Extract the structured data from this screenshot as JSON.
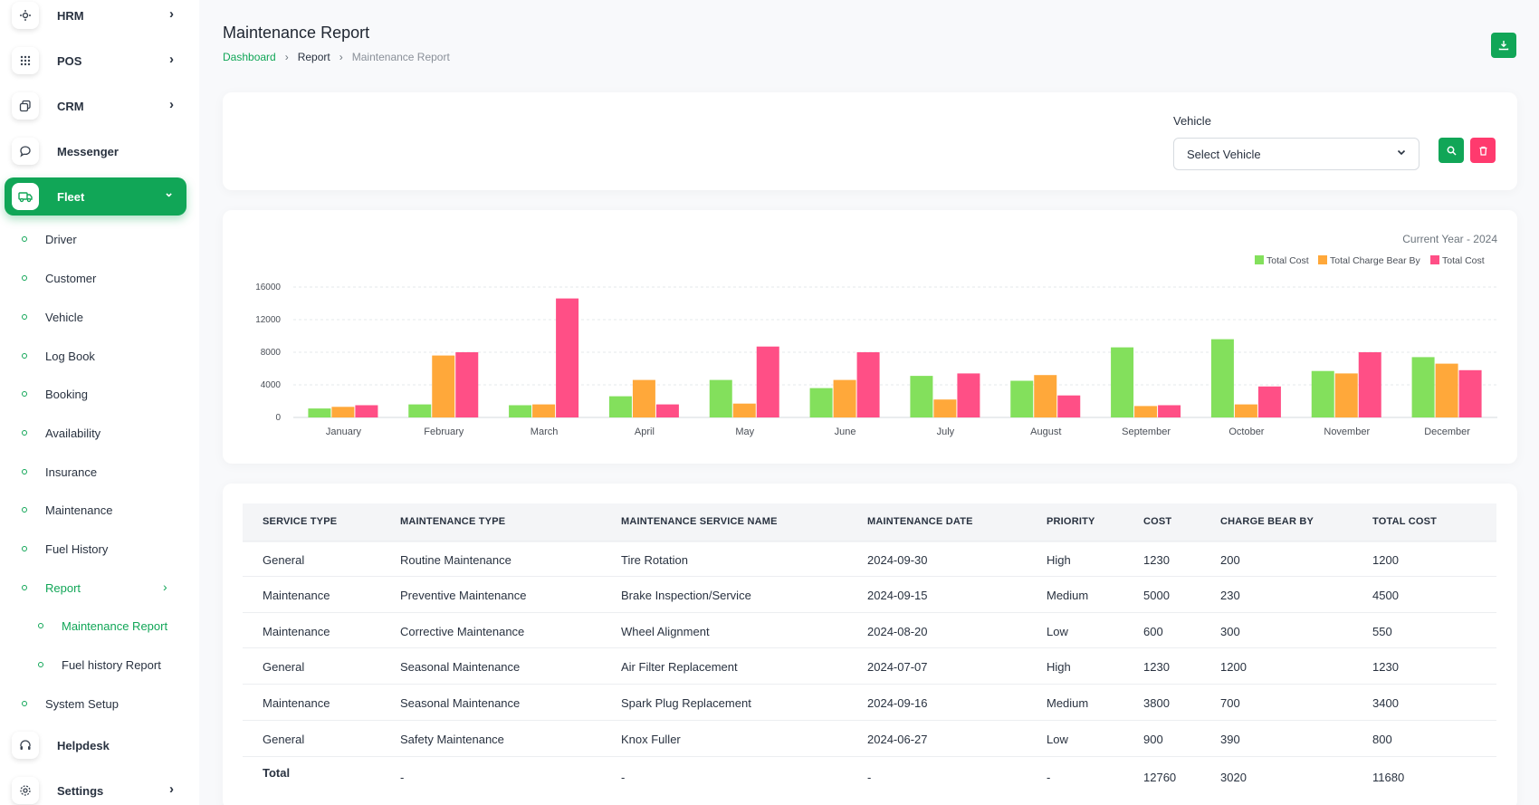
{
  "sidebar": {
    "hrm": "HRM",
    "pos": "POS",
    "crm": "CRM",
    "messenger": "Messenger",
    "fleet": "Fleet",
    "driver": "Driver",
    "customer": "Customer",
    "vehicle": "Vehicle",
    "logbook": "Log Book",
    "booking": "Booking",
    "availability": "Availability",
    "insurance": "Insurance",
    "maintenance": "Maintenance",
    "fuel_history": "Fuel History",
    "report": "Report",
    "maintenance_report": "Maintenance Report",
    "fuel_history_report": "Fuel history Report",
    "system_setup": "System Setup",
    "helpdesk": "Helpdesk",
    "settings": "Settings"
  },
  "header": {
    "title": "Maintenance Report",
    "breadcrumb": [
      "Dashboard",
      "Report",
      "Maintenance Report"
    ]
  },
  "filter": {
    "label": "Vehicle",
    "placeholder": "Select Vehicle"
  },
  "chart_meta": {
    "current_year": "Current Year - 2024"
  },
  "colors": {
    "accent": "#11a657",
    "danger": "#ff3a6e",
    "series_green": "#83e05c",
    "series_orange": "#ffa83a",
    "series_pink": "#ff4f86"
  },
  "chart_data": {
    "type": "bar",
    "categories": [
      "January",
      "February",
      "March",
      "April",
      "May",
      "June",
      "July",
      "August",
      "September",
      "October",
      "November",
      "December"
    ],
    "series": [
      {
        "name": "Total Cost",
        "color": "#83e05c",
        "values": [
          1100,
          1600,
          1500,
          2600,
          4600,
          3600,
          5100,
          4500,
          8600,
          9600,
          5700,
          7400
        ]
      },
      {
        "name": "Total Charge Bear By",
        "color": "#ffa83a",
        "values": [
          1300,
          7600,
          1600,
          4600,
          1700,
          4600,
          2200,
          5200,
          1400,
          1600,
          5400,
          6600
        ]
      },
      {
        "name": "Total Cost",
        "color": "#ff4f86",
        "values": [
          1500,
          8000,
          14600,
          1600,
          8700,
          8000,
          5400,
          2700,
          1500,
          3800,
          8000,
          5800
        ]
      }
    ],
    "yticks": [
      0,
      4000,
      8000,
      12000,
      16000
    ],
    "ylim": [
      0,
      16000
    ],
    "grid": true,
    "legend": "top-right"
  },
  "table": {
    "headers": [
      "SERVICE TYPE",
      "MAINTENANCE TYPE",
      "MAINTENANCE SERVICE NAME",
      "MAINTENANCE DATE",
      "PRIORITY",
      "COST",
      "CHARGE BEAR BY",
      "TOTAL COST"
    ],
    "rows": [
      [
        "General",
        "Routine Maintenance",
        "Tire Rotation",
        "2024-09-30",
        "High",
        "1230",
        "200",
        "1200"
      ],
      [
        "Maintenance",
        "Preventive Maintenance",
        "Brake Inspection/Service",
        "2024-09-15",
        "Medium",
        "5000",
        "230",
        "4500"
      ],
      [
        "Maintenance",
        "Corrective Maintenance",
        "Wheel Alignment",
        "2024-08-20",
        "Low",
        "600",
        "300",
        "550"
      ],
      [
        "General",
        "Seasonal Maintenance",
        "Air Filter Replacement",
        "2024-07-07",
        "High",
        "1230",
        "1200",
        "1230"
      ],
      [
        "Maintenance",
        "Seasonal Maintenance",
        "Spark Plug Replacement",
        "2024-09-16",
        "Medium",
        "3800",
        "700",
        "3400"
      ],
      [
        "General",
        "Safety Maintenance",
        "Knox Fuller",
        "2024-06-27",
        "Low",
        "900",
        "390",
        "800"
      ]
    ],
    "total": [
      "Total",
      "-",
      "-",
      "-",
      "-",
      "12760",
      "3020",
      "11680"
    ]
  }
}
